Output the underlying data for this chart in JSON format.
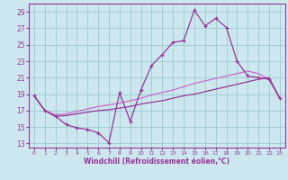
{
  "xlabel": "Windchill (Refroidissement éolien,°C)",
  "bg_color": "#cce8ee",
  "grid_color": "#99cccc",
  "line_color_dark": "#993399",
  "line_color_light": "#cc66cc",
  "x_ticks": [
    0,
    1,
    2,
    3,
    4,
    5,
    6,
    7,
    8,
    9,
    10,
    11,
    12,
    13,
    14,
    15,
    16,
    17,
    18,
    19,
    20,
    21,
    22,
    23
  ],
  "y_ticks": [
    13,
    15,
    17,
    19,
    21,
    23,
    25,
    27,
    29
  ],
  "ylim": [
    12.5,
    30.0
  ],
  "xlim": [
    -0.5,
    23.5
  ],
  "series_jagged_x": [
    0,
    1,
    2,
    3,
    4,
    5,
    6,
    7,
    8,
    9,
    10,
    11,
    12,
    13,
    14,
    15,
    16,
    17,
    18,
    19,
    20,
    21,
    22,
    23
  ],
  "series_jagged_y": [
    18.8,
    17.0,
    16.3,
    15.3,
    14.9,
    14.7,
    14.3,
    13.1,
    19.2,
    15.7,
    19.5,
    22.5,
    23.8,
    25.3,
    25.5,
    29.2,
    27.3,
    28.2,
    27.1,
    23.0,
    21.2,
    21.0,
    20.8,
    18.5
  ],
  "series_upper_x": [
    0,
    1,
    2,
    3,
    4,
    5,
    6,
    7,
    8,
    9,
    10,
    11,
    12,
    13,
    14,
    15,
    16,
    17,
    18,
    19,
    20,
    21,
    22,
    23
  ],
  "series_upper_y": [
    18.8,
    17.0,
    16.5,
    16.6,
    16.9,
    17.2,
    17.5,
    17.7,
    17.9,
    18.2,
    18.5,
    18.9,
    19.2,
    19.5,
    19.9,
    20.3,
    20.6,
    20.9,
    21.2,
    21.5,
    21.8,
    21.5,
    20.8,
    18.5
  ],
  "series_lower_x": [
    0,
    1,
    2,
    3,
    4,
    5,
    6,
    7,
    8,
    9,
    10,
    11,
    12,
    13,
    14,
    15,
    16,
    17,
    18,
    19,
    20,
    21,
    22,
    23
  ],
  "series_lower_y": [
    18.8,
    17.0,
    16.3,
    16.4,
    16.6,
    16.8,
    17.0,
    17.1,
    17.3,
    17.5,
    17.8,
    18.0,
    18.2,
    18.5,
    18.8,
    19.0,
    19.3,
    19.6,
    19.9,
    20.2,
    20.5,
    20.8,
    21.0,
    18.5
  ]
}
